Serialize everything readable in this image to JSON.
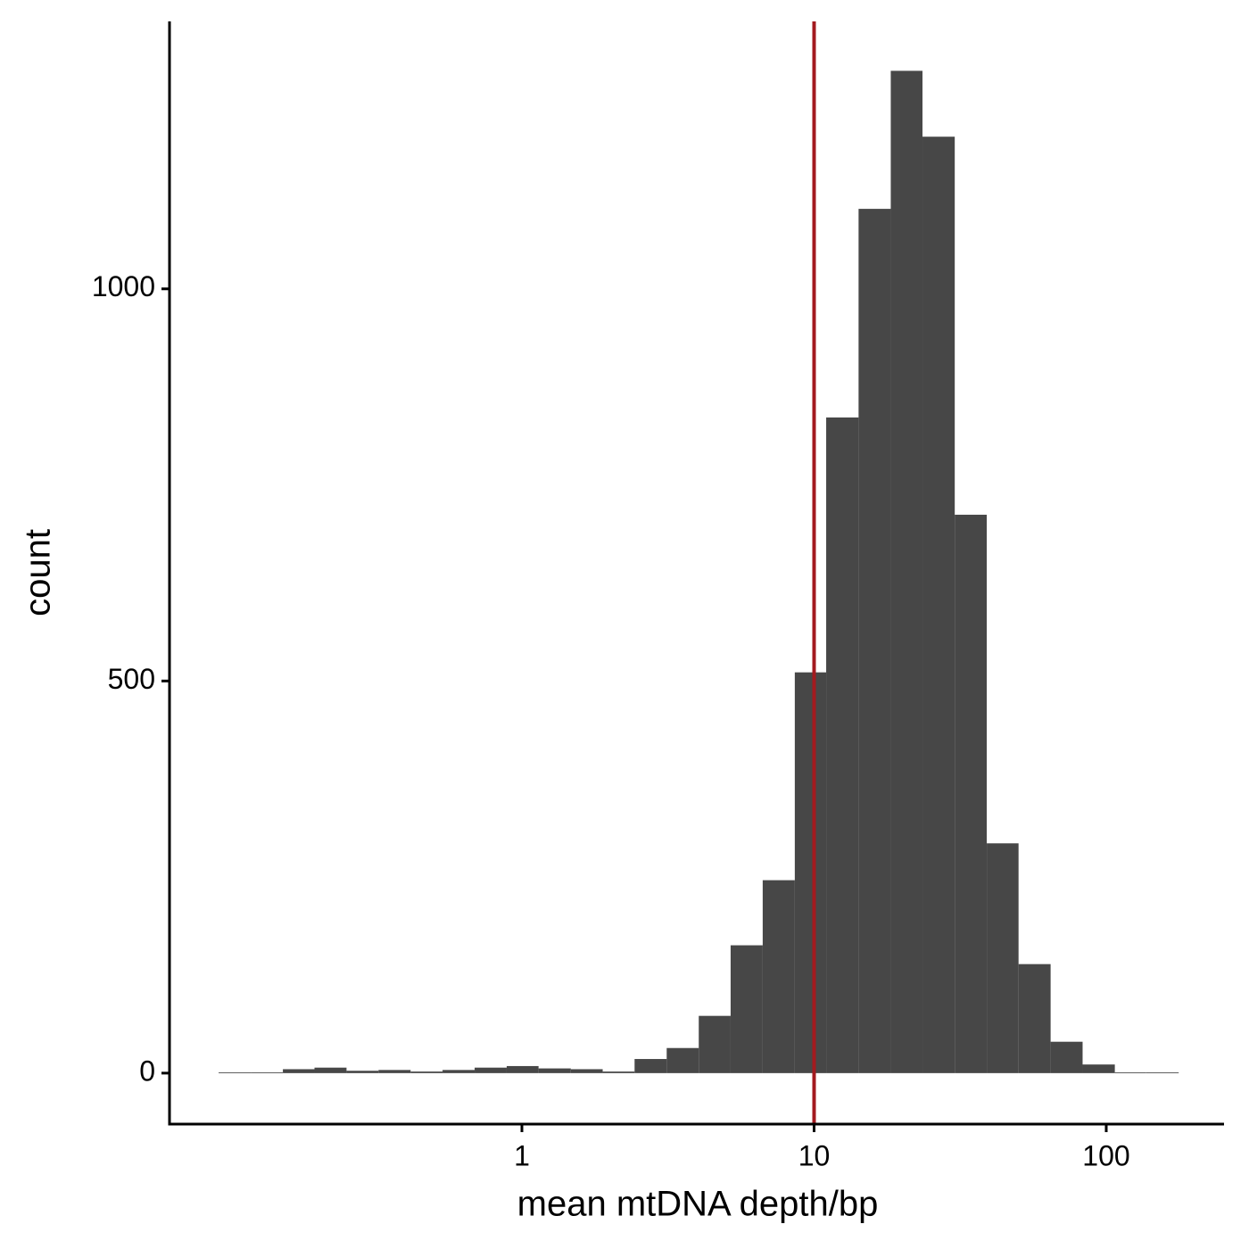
{
  "chart_data": {
    "type": "histogram",
    "xlabel": "mean mtDNA depth/bp",
    "ylabel": "count",
    "bins": [
      0.0916,
      0.118,
      0.152,
      0.195,
      0.251,
      0.323,
      0.416,
      0.535,
      0.689,
      0.887,
      1.14,
      1.47,
      1.89,
      2.43,
      3.13,
      4.03,
      5.18,
      6.67,
      8.59,
      11.0,
      14.2,
      18.3,
      23.5,
      30.3,
      39.0,
      50.1,
      64.5,
      83.0,
      107,
      137,
      177
    ],
    "counts": [
      1,
      1,
      5,
      7,
      3,
      4,
      2,
      4,
      7,
      9,
      6,
      5,
      2,
      18,
      32,
      73,
      163,
      246,
      511,
      836,
      1102,
      1278,
      1194,
      712,
      293,
      139,
      40,
      11,
      1,
      1
    ],
    "color": "#474747",
    "xscale": "log",
    "xlim": [
      0.0622,
      253
    ],
    "xticks": [
      1,
      10,
      100
    ],
    "ylim": [
      -65,
      1341
    ],
    "yticks": [
      0,
      500,
      1000
    ],
    "grid": false,
    "vline": {
      "x": 10,
      "color": "#a31a1f"
    }
  }
}
